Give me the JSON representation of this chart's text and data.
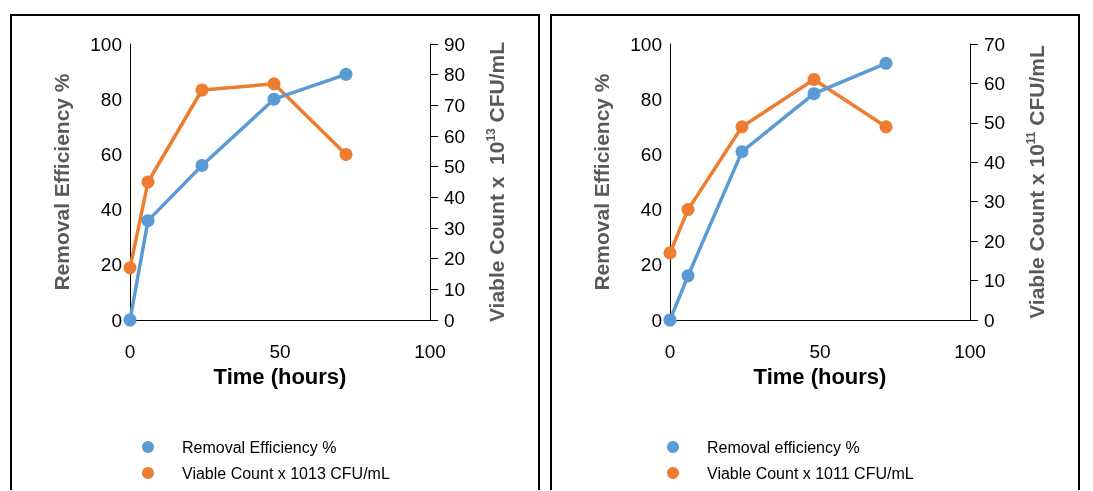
{
  "chart_data": [
    {
      "type": "line",
      "xlabel": "Time (hours)",
      "ylabel": "Removal Efficiency %",
      "y2label": "Viable Count x  10$^{13}$ CFU/mL",
      "x": [
        0,
        6,
        24,
        48,
        72
      ],
      "xlim": [
        0,
        100
      ],
      "xticks": [
        0,
        50,
        100
      ],
      "ylim": [
        0,
        100
      ],
      "yticks": [
        0,
        20,
        40,
        60,
        80,
        100
      ],
      "y2lim": [
        0,
        90
      ],
      "y2ticks": [
        0,
        10,
        20,
        30,
        40,
        50,
        60,
        70,
        80,
        90
      ],
      "grid": false,
      "legend": "bottom",
      "marker": "circle",
      "series": [
        {
          "name": "Removal Efficiency %",
          "color": "#5b9bd5",
          "values": [
            0,
            36,
            56,
            80,
            89
          ]
        },
        {
          "name": "Viable Count x 1013 CFU/mL",
          "color": "#ed7d31",
          "axis": "y2",
          "values": [
            17,
            45,
            75,
            77,
            54
          ]
        }
      ]
    },
    {
      "type": "line",
      "xlabel": "Time (hours)",
      "ylabel": "Removal Efficiency %",
      "y2label": "Viable Count x 10$^{11}$ CFU/mL",
      "x": [
        0,
        6,
        24,
        48,
        72
      ],
      "xlim": [
        0,
        100
      ],
      "xticks": [
        0,
        50,
        100
      ],
      "ylim": [
        0,
        100
      ],
      "yticks": [
        0,
        20,
        40,
        60,
        80,
        100
      ],
      "y2lim": [
        0,
        70
      ],
      "y2ticks": [
        0,
        10,
        20,
        30,
        40,
        50,
        60,
        70
      ],
      "grid": false,
      "legend": "bottom",
      "marker": "circle",
      "series": [
        {
          "name": "Removal efficiency %",
          "color": "#5b9bd5",
          "values": [
            0,
            16,
            61,
            82,
            93
          ]
        },
        {
          "name": "Viable Count x 1011 CFU/mL",
          "color": "#ed7d31",
          "axis": "y2",
          "values": [
            17,
            28,
            49,
            61,
            49
          ]
        }
      ]
    }
  ]
}
